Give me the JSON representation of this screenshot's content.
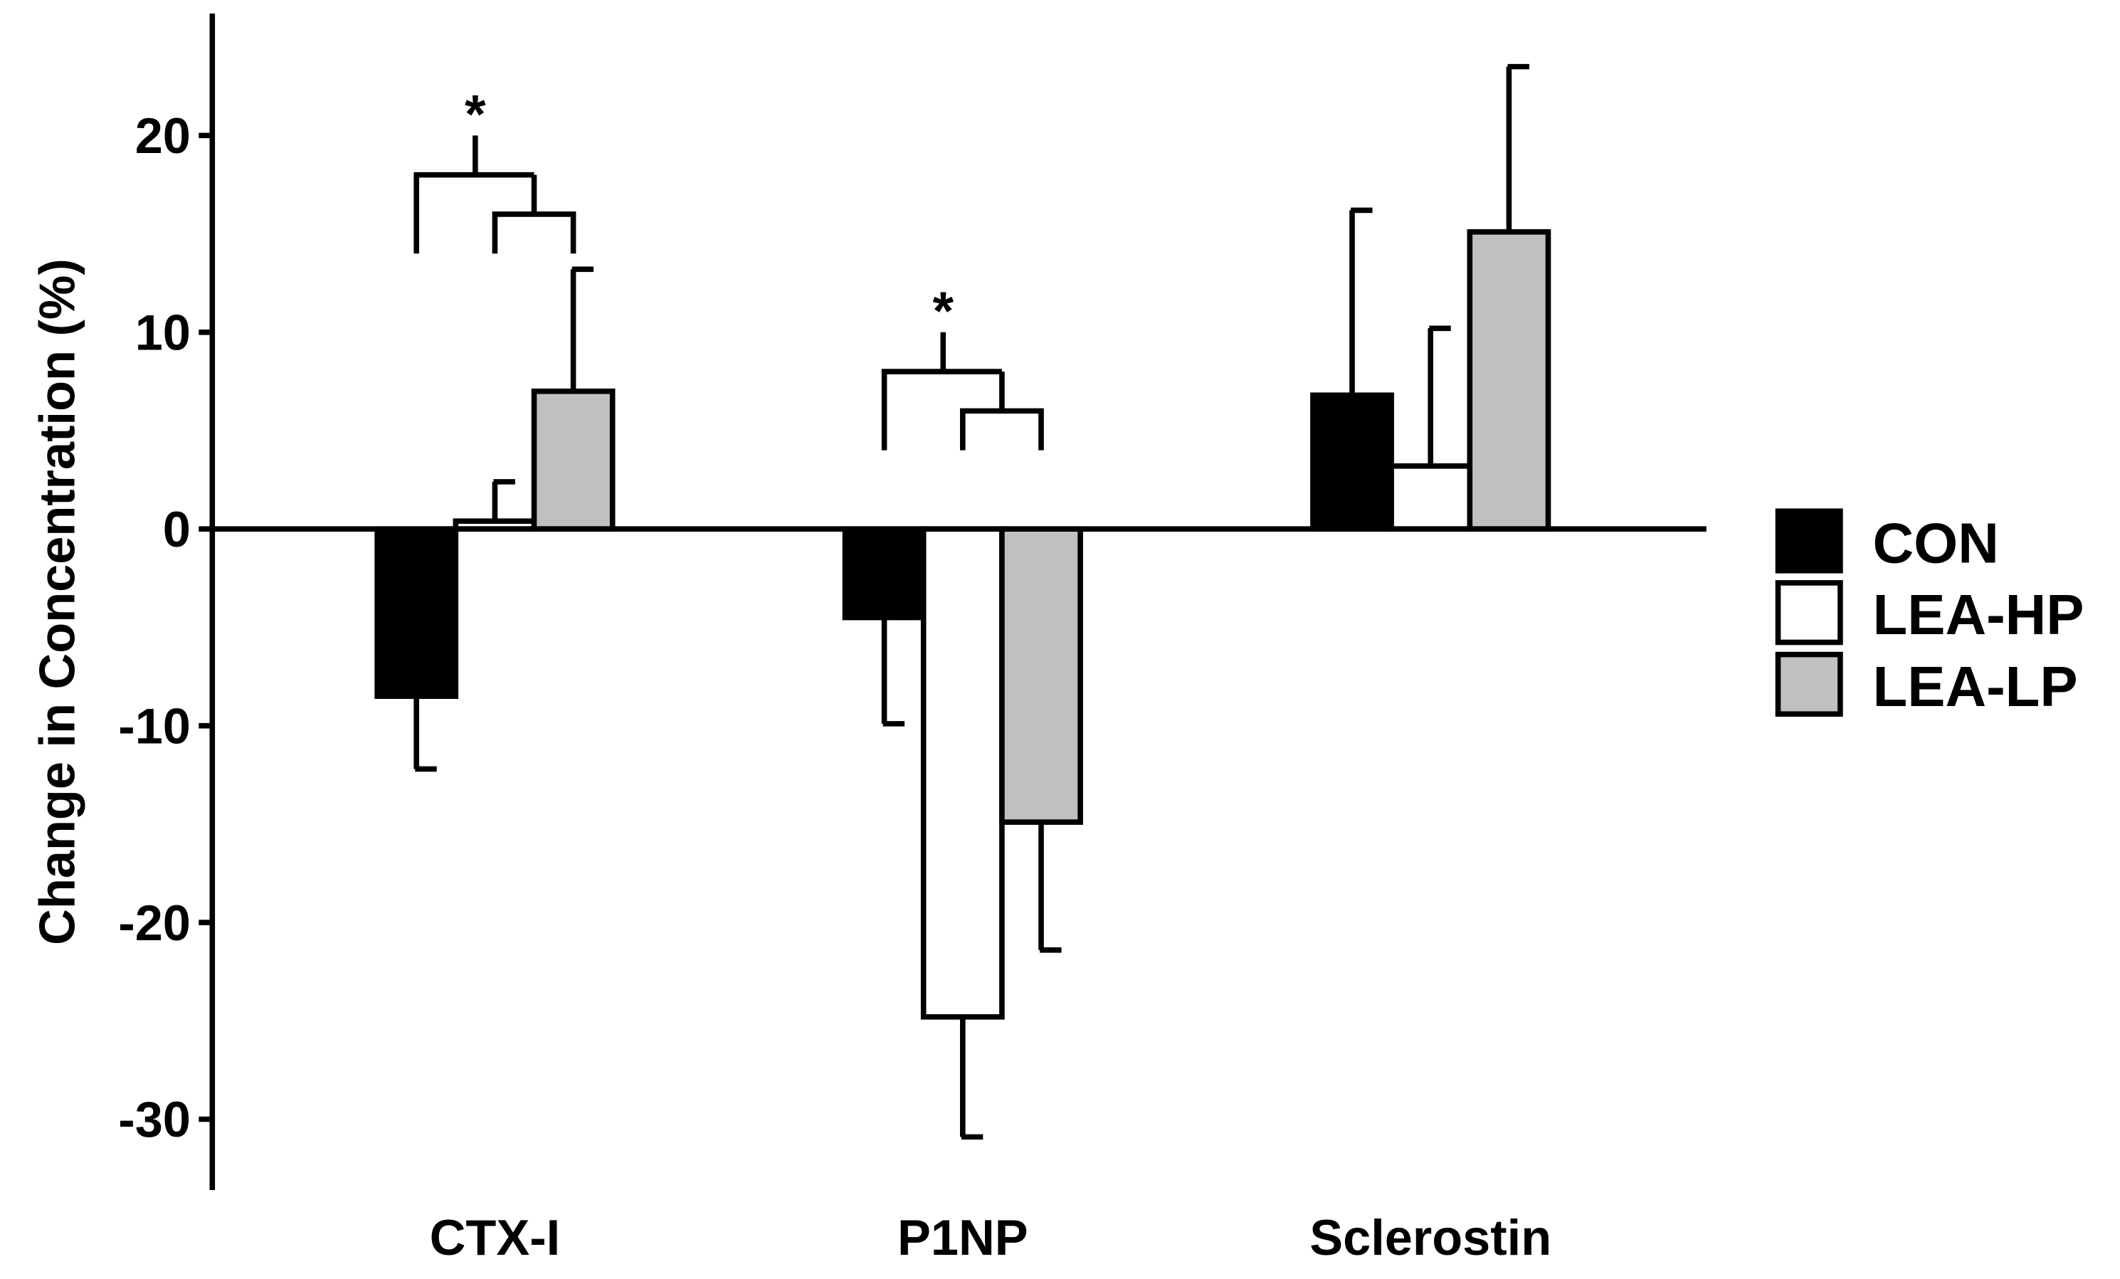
{
  "chart_data": {
    "type": "bar",
    "y_label": "Change in Concentration (%)",
    "categories": [
      "CTX-I",
      "P1NP",
      "Sclerostin"
    ],
    "series": [
      {
        "name": "CON",
        "color": "#000000",
        "values": [
          -8.5,
          -4.5,
          6.8
        ],
        "errors": [
          3.7,
          5.4,
          9.4
        ]
      },
      {
        "name": "LEA-HP",
        "color": "#ffffff",
        "values": [
          0.4,
          -24.8,
          3.2
        ],
        "errors": [
          2.0,
          6.1,
          7.0
        ]
      },
      {
        "name": "LEA-LP",
        "color": "#c0c0c0",
        "values": [
          7.0,
          -14.9,
          15.1
        ],
        "errors": [
          6.2,
          6.5,
          8.4
        ]
      }
    ],
    "annotations": [
      "*",
      "*"
    ],
    "ylim": [
      -33.6,
      26.2
    ],
    "yticks": [
      -30,
      -20,
      -10,
      0,
      10,
      20
    ],
    "legend": "right"
  }
}
